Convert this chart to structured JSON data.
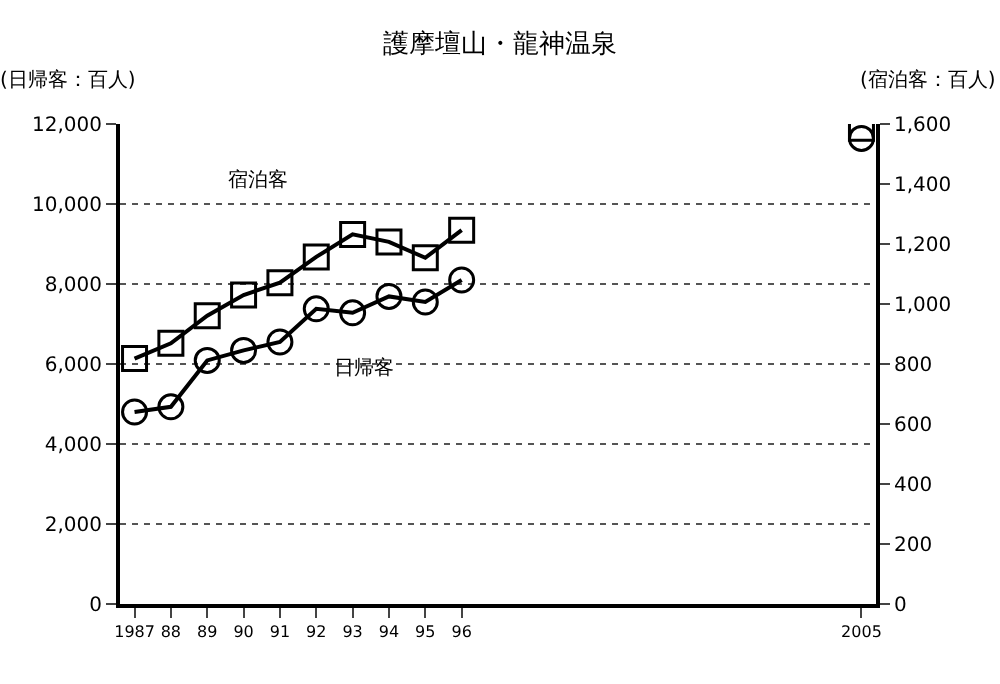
{
  "chart_data": {
    "type": "line",
    "title": "護摩壇山・龍神温泉",
    "ylabel": "(日帰客：百人)",
    "y2label": "(宿泊客：百人)",
    "categories": [
      "1987",
      "88",
      "89",
      "90",
      "91",
      "92",
      "93",
      "94",
      "95",
      "96",
      null,
      null,
      null,
      null,
      null,
      null,
      null,
      null,
      null,
      null,
      "2005"
    ],
    "series": [
      {
        "name": "宿泊客",
        "color": "#000000",
        "marker": "square",
        "axis": "y2",
        "values": [
          818,
          869,
          961,
          1030,
          1071,
          1157,
          1232,
          1207,
          1154,
          1246,
          null,
          null,
          null,
          null,
          null,
          null,
          null,
          null,
          null,
          null,
          1586
        ]
      },
      {
        "name": "日帰客",
        "color": "#000000",
        "marker": "circle",
        "values": [
          4800,
          4930,
          6090,
          6340,
          6550,
          7380,
          7280,
          7690,
          7550,
          8100,
          null,
          null,
          null,
          null,
          null,
          null,
          null,
          null,
          null,
          null,
          11640
        ]
      }
    ],
    "ylim": [
      0,
      12000
    ],
    "yticks": [
      {
        "value": 0,
        "label": "0"
      },
      {
        "value": 2000,
        "label": "2,000"
      },
      {
        "value": 4000,
        "label": "4,000"
      },
      {
        "value": 6000,
        "label": "6,000"
      },
      {
        "value": 8000,
        "label": "8,000"
      },
      {
        "value": 10000,
        "label": "10,000"
      },
      {
        "value": 12000,
        "label": "12,000"
      }
    ],
    "y2lim": [
      0,
      1600
    ],
    "y2ticks": [
      {
        "value": 0,
        "label": "0"
      },
      {
        "value": 200,
        "label": "200"
      },
      {
        "value": 400,
        "label": "400"
      },
      {
        "value": 600,
        "label": "600"
      },
      {
        "value": 800,
        "label": "800"
      },
      {
        "value": 1000,
        "label": "1,000"
      },
      {
        "value": 1200,
        "label": "1,200"
      },
      {
        "value": 1400,
        "label": "1,400"
      },
      {
        "value": 1600,
        "label": "1,600"
      }
    ],
    "grid": "y",
    "line_style": "solid"
  }
}
